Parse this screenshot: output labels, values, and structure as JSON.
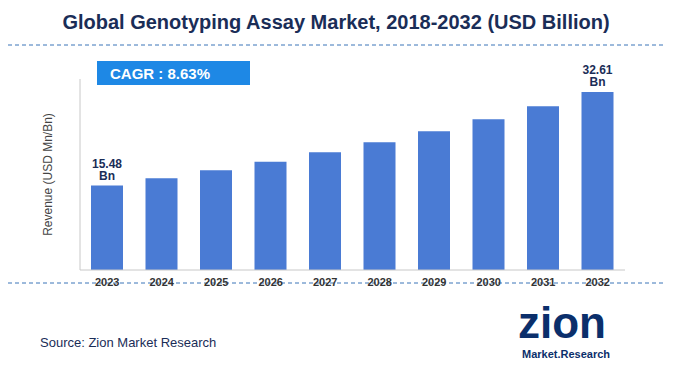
{
  "chart_data": {
    "type": "bar",
    "title": "Global Genotyping Assay Market, 2018-2032 (USD Billion)",
    "y_label": "Revenue (USD Mn/Bn)",
    "annotation": "CAGR : 8.63%",
    "source": "Source: Zion Market Research",
    "logo": [
      "zion",
      "Market.Research"
    ],
    "categories": [
      "2023",
      "2024",
      "2025",
      "2026",
      "2027",
      "2028",
      "2029",
      "2030",
      "2031",
      "2032"
    ],
    "values": [
      15.48,
      16.82,
      18.27,
      19.84,
      21.56,
      23.42,
      25.44,
      27.63,
      30.02,
      32.61
    ],
    "value_labels": [
      "15.48 Bn",
      null,
      null,
      null,
      null,
      null,
      null,
      null,
      null,
      "32.61 Bn"
    ],
    "data_labels": true,
    "color": "#4a7bd4",
    "ylim": [
      0,
      35
    ],
    "yticks": [],
    "tick_labels": "x",
    "grid": false
  }
}
